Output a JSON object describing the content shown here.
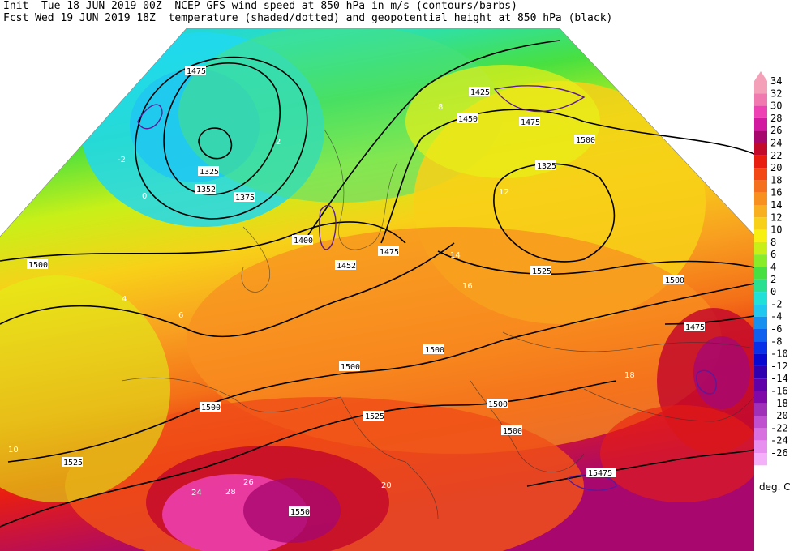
{
  "header": {
    "line1": "Init  Tue 18 JUN 2019 00Z  NCEP GFS wind speed at 850 hPa in m/s (contours/barbs)",
    "line2": "Fcst Wed 19 JUN 2019 18Z  temperature (shaded/dotted) and geopotential height at 850 hPa (black)"
  },
  "legend": {
    "unit": "deg. C",
    "items": [
      {
        "label": "34",
        "color": "#f4a0b8"
      },
      {
        "label": "32",
        "color": "#f07ab0"
      },
      {
        "label": "30",
        "color": "#ee42b4"
      },
      {
        "label": "28",
        "color": "#d21aa0"
      },
      {
        "label": "26",
        "color": "#a8086e"
      },
      {
        "label": "24",
        "color": "#c40a2a"
      },
      {
        "label": "22",
        "color": "#e81e10"
      },
      {
        "label": "20",
        "color": "#f44814"
      },
      {
        "label": "18",
        "color": "#f4701e"
      },
      {
        "label": "16",
        "color": "#f89020"
      },
      {
        "label": "14",
        "color": "#f8b020"
      },
      {
        "label": "12",
        "color": "#f8d018"
      },
      {
        "label": "10",
        "color": "#f8f010"
      },
      {
        "label": "8",
        "color": "#c8f018"
      },
      {
        "label": "6",
        "color": "#88ec28"
      },
      {
        "label": "4",
        "color": "#48e040"
      },
      {
        "label": "2",
        "color": "#28e090"
      },
      {
        "label": "0",
        "color": "#20e0d8"
      },
      {
        "label": "-2",
        "color": "#20c8f0"
      },
      {
        "label": "-4",
        "color": "#1890f0"
      },
      {
        "label": "-6",
        "color": "#1060f0"
      },
      {
        "label": "-8",
        "color": "#0830e8"
      },
      {
        "label": "-10",
        "color": "#0808d0"
      },
      {
        "label": "-12",
        "color": "#3000b0"
      },
      {
        "label": "-14",
        "color": "#6000a8"
      },
      {
        "label": "-16",
        "color": "#8008a8"
      },
      {
        "label": "-18",
        "color": "#a030b8"
      },
      {
        "label": "-20",
        "color": "#c050d0"
      },
      {
        "label": "-22",
        "color": "#d870e0"
      },
      {
        "label": "-24",
        "color": "#e890f0"
      },
      {
        "label": "-26",
        "color": "#f4b0f8"
      }
    ]
  },
  "height_labels": [
    "1400",
    "1475",
    "1425",
    "1450",
    "1475",
    "1500",
    "1325",
    "1325",
    "1352",
    "1375",
    "1400",
    "1475",
    "1452",
    "1500",
    "1525",
    "1500",
    "1475",
    "1500",
    "1500",
    "1500",
    "1500",
    "1525",
    "1500",
    "1500",
    "1525",
    "1550",
    "1475",
    "15475"
  ],
  "temp_labels": [
    "0",
    "2",
    "-2",
    "4",
    "6",
    "8",
    "10",
    "12",
    "14",
    "16",
    "18",
    "20",
    "24",
    "26",
    "28"
  ]
}
